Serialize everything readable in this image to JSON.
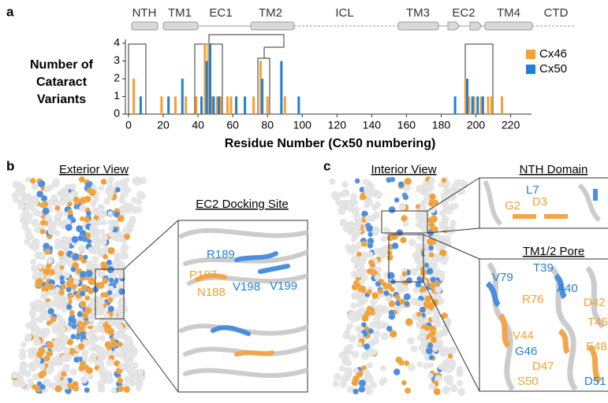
{
  "panel_labels": [
    "a",
    "b",
    "c"
  ],
  "chart_data": {
    "type": "bar",
    "domains": [
      "NTH",
      "TM1",
      "EC1",
      "TM2",
      "ICL",
      "TM3",
      "EC2",
      "TM4",
      "CTD"
    ],
    "ylabel": [
      "Number of",
      "Cataract",
      "Variants"
    ],
    "xlabel": "Residue Number (Cx50 numbering)",
    "xlim": [
      0,
      232
    ],
    "xticks": [
      0,
      20,
      40,
      60,
      80,
      100,
      120,
      140,
      160,
      180,
      200,
      220
    ],
    "ylim": [
      0,
      4
    ],
    "yticks": [
      0,
      1,
      2,
      3,
      4
    ],
    "legend": "right",
    "series": [
      {
        "name": "Cx46",
        "color": "#f5a031",
        "x": [
          3,
          19,
          27,
          33,
          39,
          44,
          46,
          48,
          51,
          53,
          57,
          59,
          72,
          76,
          80,
          90,
          194,
          196,
          199,
          203,
          207,
          209,
          215
        ],
        "values": [
          2,
          1,
          1,
          1,
          1,
          4,
          4,
          1,
          1,
          1,
          1,
          1,
          1,
          3,
          1,
          1,
          2,
          1,
          1,
          1,
          1,
          1,
          1
        ]
      },
      {
        "name": "Cx50",
        "color": "#1f7fd8",
        "x": [
          7,
          23,
          31,
          42,
          45,
          47,
          49,
          52,
          62,
          67,
          77,
          88,
          98,
          188,
          195,
          198,
          201,
          204
        ],
        "values": [
          1,
          1,
          2,
          1,
          3,
          4,
          1,
          1,
          1,
          1,
          2,
          3,
          1,
          1,
          2,
          1,
          1,
          1
        ]
      }
    ]
  },
  "panel_b": {
    "view": "Exterior View",
    "inset": "EC2 Docking Site",
    "residues": [
      {
        "label": "R189",
        "color": "#1f7fd8"
      },
      {
        "label": "P187",
        "color": "#f5a031"
      },
      {
        "label": "V199",
        "color": "#1f7fd8"
      },
      {
        "label": "V198",
        "color": "#1f7fd8"
      },
      {
        "label": "N188",
        "color": "#f5a031"
      }
    ]
  },
  "panel_c": {
    "view": "Interior View",
    "inset_top": "NTH Domain",
    "top_residues": [
      {
        "label": "L7",
        "color": "#1f7fd8"
      },
      {
        "label": "G2",
        "color": "#f5a031"
      },
      {
        "label": "D3",
        "color": "#f5a031"
      }
    ],
    "inset_bottom": "TM1/2 Pore",
    "bottom_residues": [
      {
        "label": "V79",
        "color": "#1f7fd8"
      },
      {
        "label": "T39",
        "color": "#1f7fd8"
      },
      {
        "label": "A40",
        "color": "#1f7fd8"
      },
      {
        "label": "R76",
        "color": "#f5a031"
      },
      {
        "label": "D42",
        "color": "#f5a031"
      },
      {
        "label": "T45",
        "color": "#f5a031"
      },
      {
        "label": "V44",
        "color": "#f5a031"
      },
      {
        "label": "G46",
        "color": "#1f7fd8"
      },
      {
        "label": "E48",
        "color": "#f5a031"
      },
      {
        "label": "D47",
        "color": "#f5a031"
      },
      {
        "label": "S50",
        "color": "#f5a031"
      },
      {
        "label": "D51",
        "color": "#1f7fd8"
      }
    ]
  }
}
